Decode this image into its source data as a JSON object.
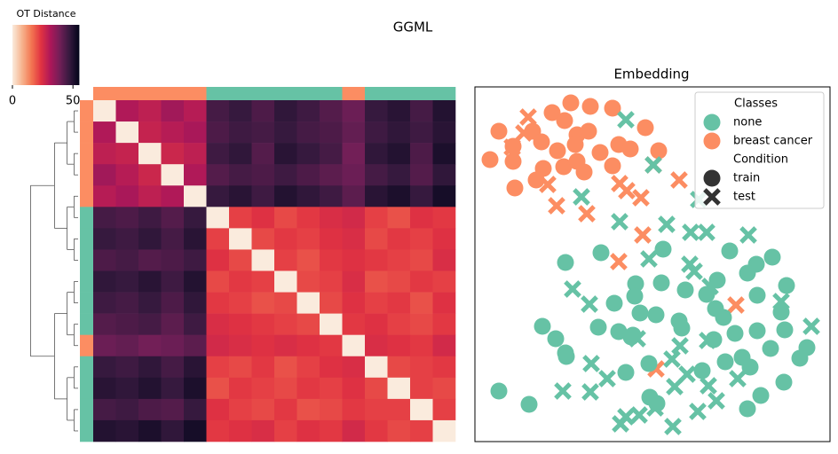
{
  "title": "GGML",
  "chart_data": [
    {
      "type": "heatmap",
      "colorbar_label": "OT Distance",
      "zlim": [
        0,
        55
      ],
      "zticks": [
        0,
        50
      ],
      "colormap": [
        "#faebdd",
        "#f6b48f",
        "#f37651",
        "#e13342",
        "#ad1759",
        "#701f57",
        "#35193e",
        "#03051a"
      ],
      "row_colors": [
        "#fc8d62",
        "#fc8d62",
        "#fc8d62",
        "#fc8d62",
        "#fc8d62",
        "#66c2a5",
        "#66c2a5",
        "#66c2a5",
        "#66c2a5",
        "#66c2a5",
        "#66c2a5",
        "#fc8d62",
        "#66c2a5",
        "#66c2a5",
        "#66c2a5",
        "#66c2a5"
      ],
      "z": [
        [
          0,
          31,
          29,
          33,
          30,
          45,
          47,
          44,
          48,
          46,
          43,
          40,
          47,
          49,
          45,
          50
        ],
        [
          31,
          0,
          28,
          30,
          32,
          44,
          46,
          45,
          47,
          45,
          44,
          41,
          46,
          48,
          46,
          49
        ],
        [
          29,
          28,
          0,
          27,
          29,
          46,
          48,
          43,
          49,
          47,
          45,
          39,
          48,
          50,
          44,
          51
        ],
        [
          33,
          30,
          27,
          0,
          31,
          43,
          45,
          44,
          46,
          44,
          42,
          40,
          45,
          47,
          43,
          48
        ],
        [
          30,
          32,
          29,
          31,
          0,
          47,
          49,
          46,
          50,
          48,
          46,
          42,
          49,
          51,
          47,
          52
        ],
        [
          45,
          44,
          46,
          43,
          47,
          0,
          22,
          24,
          21,
          23,
          25,
          26,
          22,
          20,
          24,
          23
        ],
        [
          47,
          46,
          48,
          45,
          49,
          22,
          0,
          21,
          23,
          22,
          24,
          25,
          21,
          23,
          22,
          24
        ],
        [
          44,
          45,
          43,
          44,
          46,
          24,
          21,
          0,
          22,
          20,
          23,
          24,
          23,
          22,
          21,
          25
        ],
        [
          48,
          47,
          49,
          46,
          50,
          21,
          23,
          22,
          0,
          21,
          22,
          25,
          20,
          21,
          23,
          22
        ],
        [
          46,
          45,
          47,
          44,
          48,
          23,
          22,
          20,
          21,
          0,
          21,
          24,
          22,
          23,
          20,
          24
        ],
        [
          43,
          44,
          45,
          42,
          46,
          25,
          24,
          23,
          22,
          21,
          0,
          23,
          24,
          22,
          21,
          23
        ],
        [
          40,
          41,
          39,
          40,
          42,
          26,
          25,
          24,
          25,
          24,
          23,
          0,
          25,
          24,
          23,
          26
        ],
        [
          47,
          46,
          48,
          45,
          49,
          22,
          21,
          23,
          20,
          22,
          24,
          25,
          0,
          21,
          22,
          23
        ],
        [
          49,
          48,
          50,
          47,
          51,
          20,
          23,
          22,
          21,
          23,
          22,
          24,
          21,
          0,
          22,
          21
        ],
        [
          45,
          46,
          44,
          43,
          47,
          24,
          22,
          21,
          23,
          20,
          21,
          23,
          22,
          22,
          0,
          22
        ],
        [
          50,
          49,
          51,
          48,
          52,
          23,
          24,
          25,
          22,
          24,
          23,
          26,
          23,
          21,
          22,
          0
        ]
      ]
    },
    {
      "type": "scatter",
      "title": "Embedding",
      "xlim": [
        0,
        400
      ],
      "ylim": [
        0,
        400
      ],
      "class_title": "Classes",
      "condition_title": "Condition",
      "classes": [
        {
          "name": "none",
          "color": "#66c2a5"
        },
        {
          "name": "breast cancer",
          "color": "#fc8d62"
        }
      ],
      "conditions": [
        {
          "name": "train",
          "marker": "circle"
        },
        {
          "name": "test",
          "marker": "x"
        }
      ],
      "series": [
        {
          "class": 1,
          "condition": 0,
          "x": [
            108,
            87,
            130,
            155,
            101,
            27,
            65,
            115,
            128,
            192,
            43,
            75,
            93,
            113,
            141,
            162,
            175,
            17,
            43,
            77,
            100,
            115,
            123,
            155,
            69,
            45,
            207
          ],
          "y": [
            382,
            371,
            378,
            376,
            362,
            350,
            350,
            346,
            350,
            354,
            333,
            338,
            328,
            335,
            326,
            335,
            330,
            318,
            316,
            308,
            310,
            316,
            304,
            311,
            295,
            286,
            328
          ]
        },
        {
          "class": 1,
          "condition": 1,
          "x": [
            60,
            55,
            42,
            82,
            92,
            126,
            163,
            171,
            187,
            201,
            230,
            189,
            162,
            294,
            204
          ],
          "y": [
            366,
            348,
            332,
            290,
            266,
            257,
            291,
            283,
            275,
            312,
            295,
            233,
            203,
            154,
            82
          ]
        },
        {
          "class": 0,
          "condition": 0,
          "x": [
            102,
            142,
            212,
            287,
            317,
            335,
            307,
            181,
            210,
            237,
            273,
            261,
            180,
            157,
            318,
            351,
            271,
            186,
            204,
            345,
            280,
            230,
            76,
            139,
            162,
            178,
            233,
            269,
            293,
            318,
            349,
            91,
            176,
            102,
            103,
            301,
            333,
            374,
            366,
            196,
            256,
            282,
            310,
            170,
            27,
            61,
            197,
            205,
            322,
            307,
            348
          ],
          "y": [
            202,
            213,
            217,
            215,
            200,
            208,
            190,
            178,
            179,
            171,
            182,
            166,
            164,
            156,
            165,
            176,
            150,
            145,
            143,
            146,
            140,
            136,
            130,
            129,
            124,
            120,
            128,
            115,
            122,
            125,
            126,
            116,
            118,
            100,
            96,
            95,
            105,
            106,
            94,
            88,
            80,
            90,
            84,
            78,
            57,
            42,
            50,
            43,
            52,
            37,
            67
          ]
        },
        {
          "class": 0,
          "condition": 1,
          "x": [
            170,
            201,
            120,
            163,
            216,
            243,
            261,
            308,
            252,
            196,
            242,
            247,
            110,
            129,
            265,
            345,
            379,
            183,
            231,
            262,
            131,
            222,
            99,
            130,
            149,
            239,
            170,
            185,
            203,
            225,
            263,
            296,
            272,
            251,
            223,
            164
          ],
          "y": [
            363,
            312,
            276,
            248,
            245,
            236,
            236,
            233,
            273,
            206,
            200,
            192,
            172,
            155,
            175,
            158,
            130,
            116,
            108,
            114,
            88,
            93,
            57,
            56,
            71,
            76,
            28,
            30,
            38,
            62,
            63,
            71,
            46,
            34,
            17,
            20
          ]
        }
      ]
    }
  ]
}
